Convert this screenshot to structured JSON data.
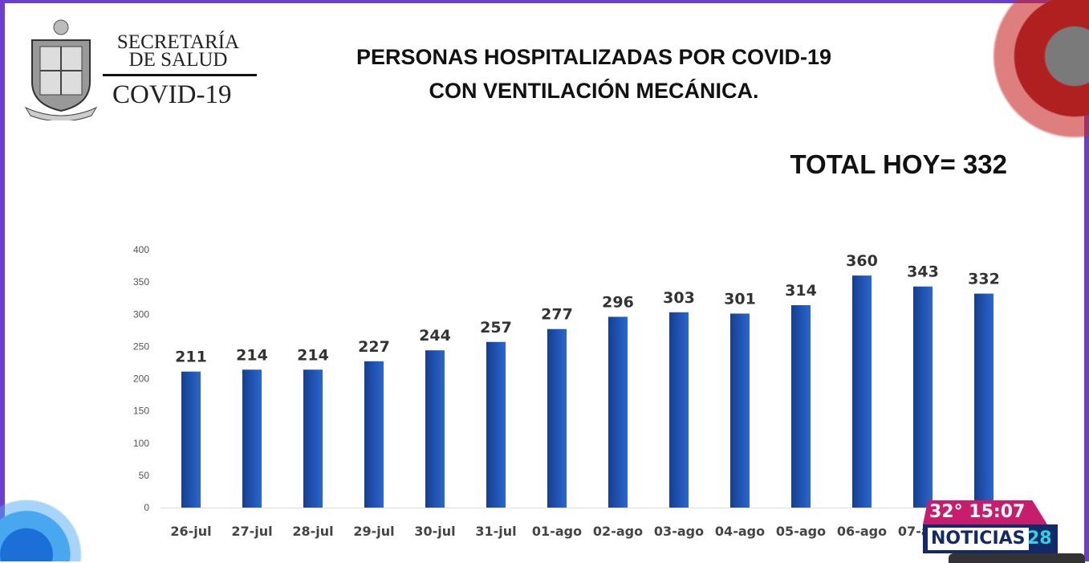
{
  "header": {
    "logo_text": [
      "SECRETARÍA",
      "DE SALUD"
    ],
    "logo_subtitle": "COVID-19",
    "title_lines": [
      "PERSONAS HOSPITALIZADAS POR COVID-19",
      "CON VENTILACIÓN MECÁNICA."
    ],
    "total": "TOTAL HOY= 332"
  },
  "overlay": {
    "weather_time": "32° 15:07",
    "brand": "NOTICIAS",
    "channel": "28"
  },
  "colors": {
    "bar": "#1f4fa8",
    "frame": "#6a3fd0",
    "overlay_pink": "#c81c6c",
    "overlay_navy": "#132a6a"
  },
  "chart_data": {
    "type": "bar",
    "title": "PERSONAS HOSPITALIZADAS POR COVID-19 CON VENTILACIÓN MECÁNICA.",
    "categories": [
      "26-jul",
      "27-jul",
      "28-jul",
      "29-jul",
      "30-jul",
      "31-jul",
      "01-ago",
      "02-ago",
      "03-ago",
      "04-ago",
      "05-ago",
      "06-ago",
      "07-ago",
      ""
    ],
    "values": [
      211,
      214,
      214,
      227,
      244,
      257,
      277,
      296,
      303,
      301,
      314,
      360,
      343,
      332
    ],
    "ylim": [
      0,
      400
    ],
    "yticks": [
      0,
      50,
      100,
      150,
      200,
      250,
      300,
      350,
      400
    ],
    "grid": false,
    "legend": "none",
    "data_labels": true
  }
}
